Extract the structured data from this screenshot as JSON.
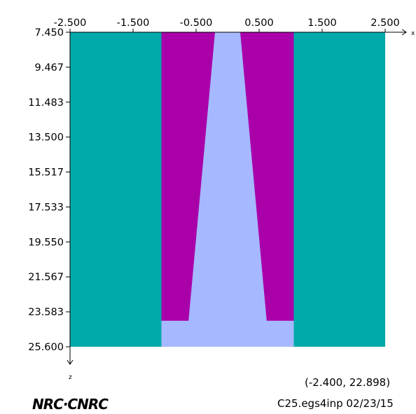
{
  "view": {
    "x_range": [
      -2.5,
      2.5
    ],
    "z_range": [
      7.45,
      25.6
    ],
    "x_axis_label": "x",
    "z_axis_label": "z",
    "x_ticks": [
      "-2.500",
      "-1.500",
      "-0.500",
      "0.500",
      "1.500",
      "2.500"
    ],
    "x_tick_values": [
      -2.5,
      -1.5,
      -0.5,
      0.5,
      1.5,
      2.5
    ],
    "z_ticks": [
      "7.450",
      "9.467",
      "11.483",
      "13.500",
      "15.517",
      "17.533",
      "19.550",
      "21.567",
      "23.583",
      "25.600"
    ],
    "z_tick_values": [
      7.45,
      9.467,
      11.483,
      13.5,
      15.517,
      17.533,
      19.55,
      21.567,
      23.583,
      25.6
    ]
  },
  "colors": {
    "teal_region": "#00aaaa",
    "purple_region": "#aa00aa",
    "light_blue_region": "#a6b8ff",
    "axis": "#000000",
    "background": "#ffffff"
  },
  "regions": [
    {
      "name": "left-outer-wall-region",
      "color_key": "teal_region",
      "points": [
        [
          -2.5,
          7.45
        ],
        [
          -1.05,
          7.45
        ],
        [
          -1.05,
          25.6
        ],
        [
          -2.5,
          25.6
        ]
      ]
    },
    {
      "name": "right-outer-wall-region",
      "color_key": "teal_region",
      "points": [
        [
          1.05,
          7.45
        ],
        [
          2.5,
          7.45
        ],
        [
          2.5,
          25.6
        ],
        [
          1.05,
          25.6
        ]
      ]
    },
    {
      "name": "inner-cavity-region",
      "color_key": "light_blue_region",
      "points": [
        [
          -1.05,
          7.45
        ],
        [
          1.05,
          7.45
        ],
        [
          1.05,
          25.6
        ],
        [
          -1.05,
          25.6
        ]
      ]
    },
    {
      "name": "left-tapered-insert-region",
      "color_key": "purple_region",
      "points": [
        [
          -1.05,
          7.45
        ],
        [
          -0.2,
          7.45
        ],
        [
          -0.62,
          24.1
        ],
        [
          -1.05,
          24.1
        ]
      ]
    },
    {
      "name": "right-tapered-insert-region",
      "color_key": "purple_region",
      "points": [
        [
          0.2,
          7.45
        ],
        [
          1.05,
          7.45
        ],
        [
          1.05,
          24.1
        ],
        [
          0.62,
          24.1
        ]
      ]
    }
  ],
  "cursor_readout": "(-2.400, 22.898)",
  "file_info": "C25.egs4inp  02/23/15",
  "logo_text": "NRC·CNRC"
}
